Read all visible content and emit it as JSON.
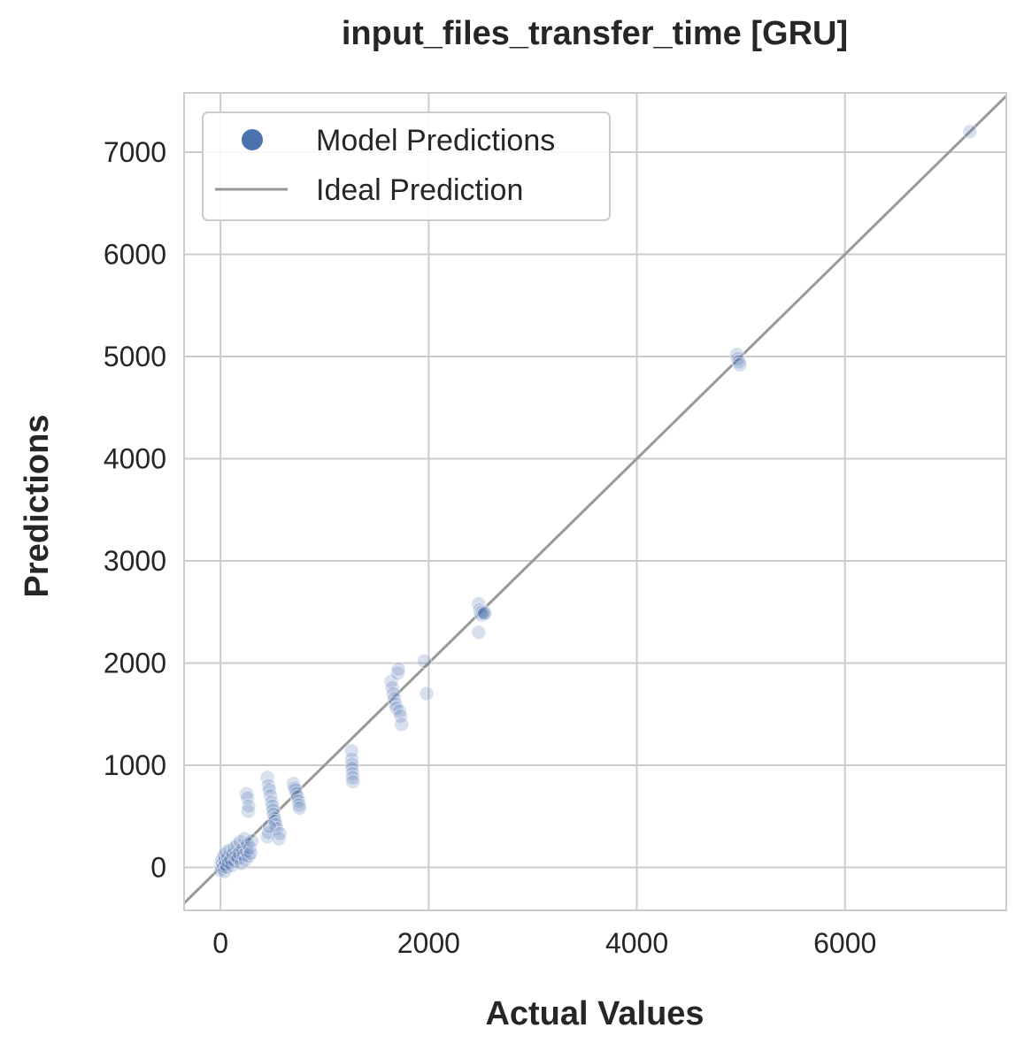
{
  "chart_data": {
    "type": "scatter",
    "title": "input_files_transfer_time [GRU]",
    "xlabel": "Actual Values",
    "ylabel": "Predictions",
    "xlim": [
      -350,
      7550
    ],
    "ylim": [
      -420,
      7580
    ],
    "xticks": [
      0,
      2000,
      4000,
      6000
    ],
    "yticks": [
      0,
      1000,
      2000,
      3000,
      4000,
      5000,
      6000,
      7000
    ],
    "grid": true,
    "legend_position": "top-left",
    "legend": [
      "Model Predictions",
      "Ideal Prediction"
    ],
    "colors": {
      "points": "#4c72b0",
      "ideal_line": "#999999",
      "grid": "#cccccc"
    },
    "series": [
      {
        "name": "Model Predictions",
        "kind": "scatter",
        "points": [
          [
            0,
            -30
          ],
          [
            5,
            20
          ],
          [
            10,
            60
          ],
          [
            15,
            -10
          ],
          [
            20,
            40
          ],
          [
            25,
            90
          ],
          [
            30,
            10
          ],
          [
            35,
            120
          ],
          [
            40,
            -40
          ],
          [
            45,
            70
          ],
          [
            50,
            30
          ],
          [
            55,
            150
          ],
          [
            60,
            0
          ],
          [
            70,
            100
          ],
          [
            80,
            50
          ],
          [
            90,
            170
          ],
          [
            100,
            80
          ],
          [
            110,
            20
          ],
          [
            120,
            130
          ],
          [
            130,
            190
          ],
          [
            140,
            60
          ],
          [
            150,
            110
          ],
          [
            160,
            220
          ],
          [
            170,
            90
          ],
          [
            180,
            140
          ],
          [
            190,
            250
          ],
          [
            200,
            40
          ],
          [
            210,
            180
          ],
          [
            220,
            120
          ],
          [
            230,
            280
          ],
          [
            240,
            70
          ],
          [
            250,
            160
          ],
          [
            260,
            230
          ],
          [
            270,
            110
          ],
          [
            280,
            190
          ],
          [
            290,
            140
          ],
          [
            300,
            260
          ],
          [
            250,
            720
          ],
          [
            260,
            680
          ],
          [
            265,
            550
          ],
          [
            270,
            600
          ],
          [
            450,
            880
          ],
          [
            460,
            800
          ],
          [
            470,
            760
          ],
          [
            480,
            700
          ],
          [
            490,
            640
          ],
          [
            500,
            600
          ],
          [
            505,
            560
          ],
          [
            510,
            520
          ],
          [
            520,
            480
          ],
          [
            525,
            450
          ],
          [
            530,
            420
          ],
          [
            540,
            380
          ],
          [
            450,
            300
          ],
          [
            460,
            340
          ],
          [
            470,
            400
          ],
          [
            560,
            280
          ],
          [
            570,
            330
          ],
          [
            700,
            820
          ],
          [
            710,
            780
          ],
          [
            720,
            760
          ],
          [
            730,
            720
          ],
          [
            740,
            690
          ],
          [
            750,
            650
          ],
          [
            755,
            610
          ],
          [
            760,
            580
          ],
          [
            1260,
            1140
          ],
          [
            1262,
            1060
          ],
          [
            1264,
            1010
          ],
          [
            1266,
            970
          ],
          [
            1268,
            920
          ],
          [
            1270,
            880
          ],
          [
            1272,
            840
          ],
          [
            1640,
            1820
          ],
          [
            1650,
            1760
          ],
          [
            1660,
            1700
          ],
          [
            1670,
            1650
          ],
          [
            1680,
            1600
          ],
          [
            1690,
            1560
          ],
          [
            1700,
            1900
          ],
          [
            1710,
            1940
          ],
          [
            1720,
            1530
          ],
          [
            1730,
            1480
          ],
          [
            1740,
            1400
          ],
          [
            1960,
            2020
          ],
          [
            1980,
            1700
          ],
          [
            2480,
            2580
          ],
          [
            2490,
            2520
          ],
          [
            2500,
            2490
          ],
          [
            2510,
            2470
          ],
          [
            2520,
            2500
          ],
          [
            2530,
            2480
          ],
          [
            2540,
            2490
          ],
          [
            2480,
            2300
          ],
          [
            4960,
            5020
          ],
          [
            4970,
            4980
          ],
          [
            4980,
            4950
          ],
          [
            4990,
            4920
          ],
          [
            7200,
            7200
          ]
        ]
      },
      {
        "name": "Ideal Prediction",
        "kind": "line",
        "x": [
          -350,
          7550
        ],
        "y": [
          -350,
          7550
        ]
      }
    ]
  }
}
